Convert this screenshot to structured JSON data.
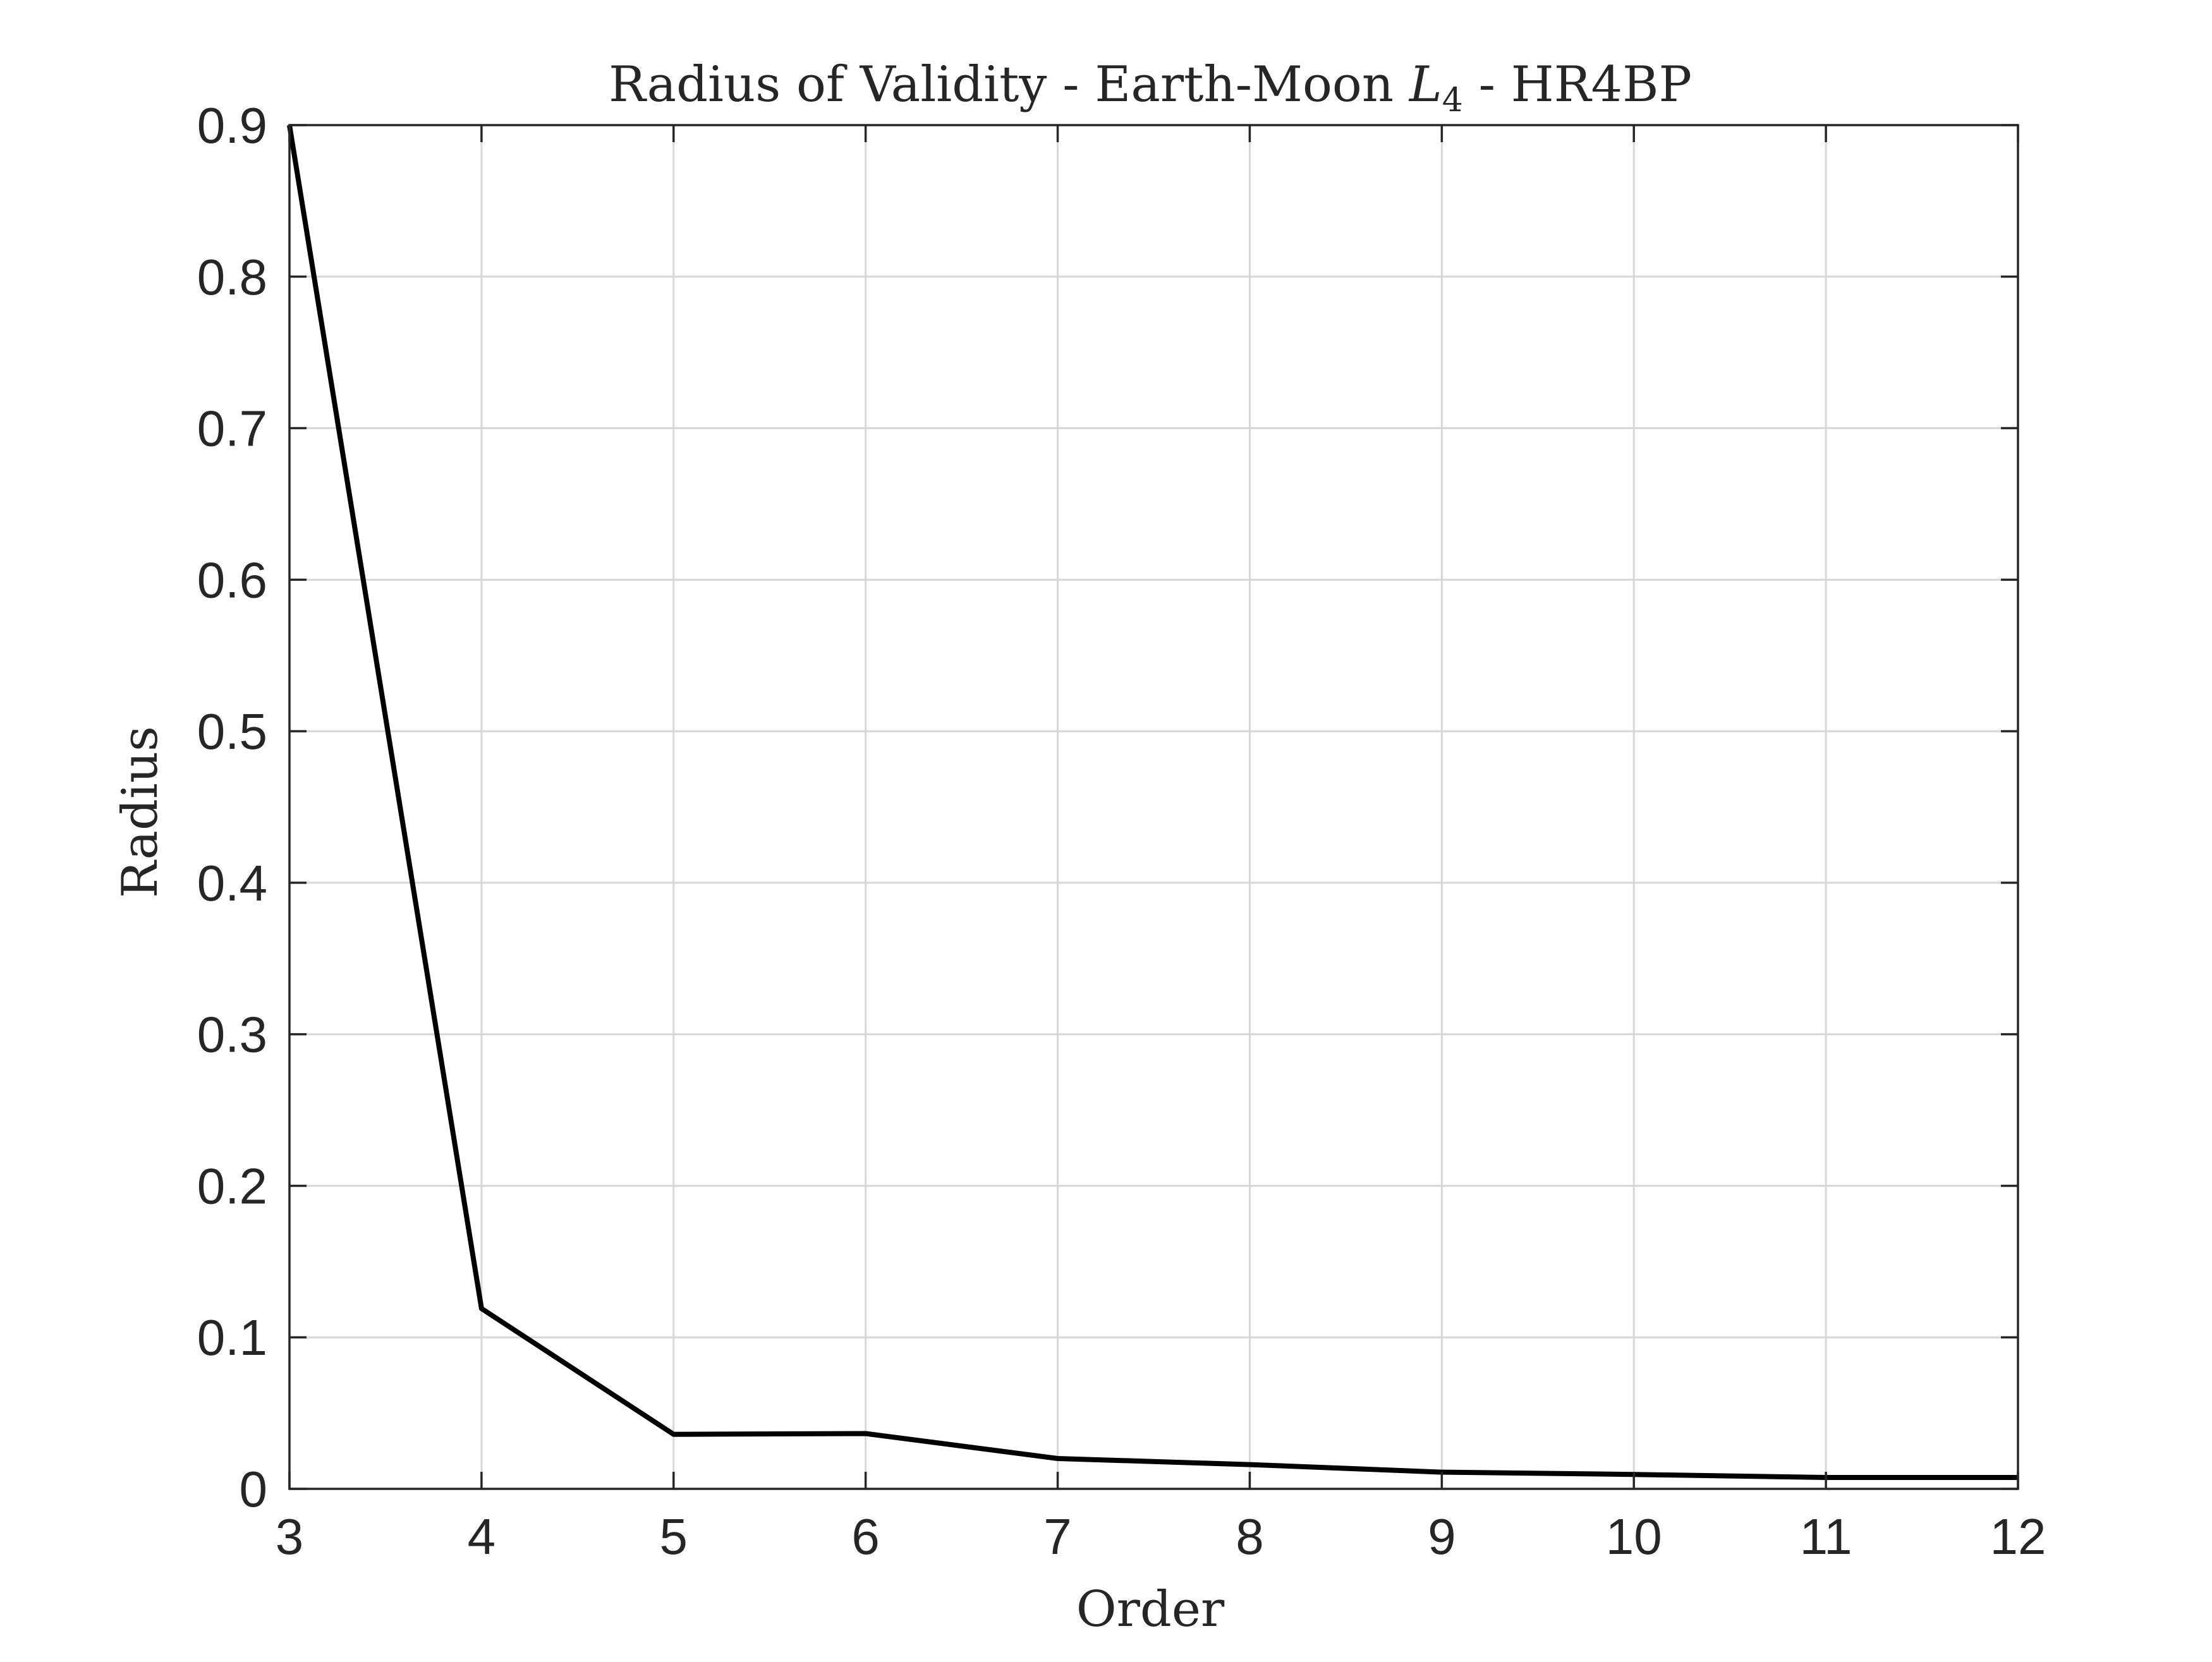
{
  "chart_data": {
    "type": "line",
    "title": {
      "prefix": "Radius of Validity - Earth-Moon ",
      "symbol": "L",
      "subscript": "4",
      "suffix": " - HR4BP"
    },
    "xlabel": "Order",
    "ylabel": "Radius",
    "xlim": [
      3,
      12
    ],
    "ylim": [
      0,
      0.9
    ],
    "xticks": [
      3,
      4,
      5,
      6,
      7,
      8,
      9,
      10,
      11,
      12
    ],
    "xtick_labels": [
      "3",
      "4",
      "5",
      "6",
      "7",
      "8",
      "9",
      "10",
      "11",
      "12"
    ],
    "yticks": [
      0,
      0.1,
      0.2,
      0.3,
      0.4,
      0.5,
      0.6,
      0.7,
      0.8,
      0.9
    ],
    "ytick_labels": [
      "0",
      "0.1",
      "0.2",
      "0.3",
      "0.4",
      "0.5",
      "0.6",
      "0.7",
      "0.8",
      "0.9"
    ],
    "grid": true,
    "series": [
      {
        "color": "#000000",
        "x": [
          3,
          4,
          5,
          6,
          7,
          8,
          9,
          10,
          11,
          12
        ],
        "y": [
          0.9,
          0.119,
          0.036,
          0.0365,
          0.02,
          0.016,
          0.011,
          0.0095,
          0.0075,
          0.0075
        ]
      }
    ]
  }
}
